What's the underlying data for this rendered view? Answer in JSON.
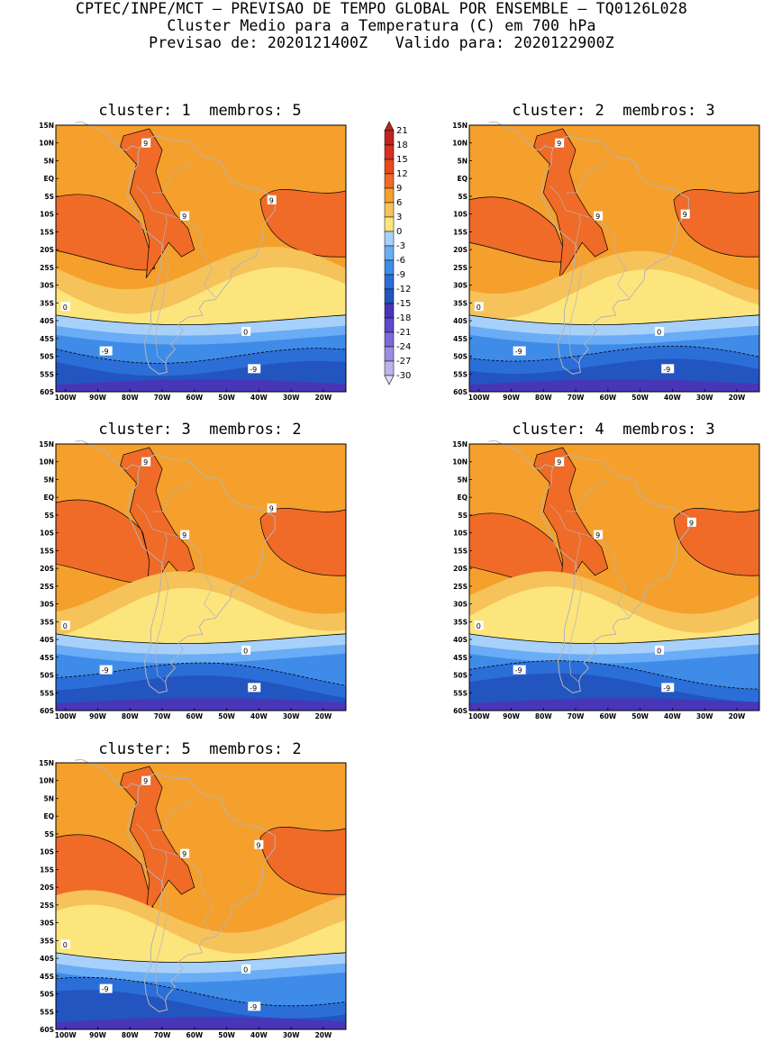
{
  "header": {
    "line1": "CPTEC/INPE/MCT – PREVISAO DE TEMPO GLOBAL POR ENSEMBLE – TQ0126L028",
    "line2": "Cluster Medio para a Temperatura (C) em 700 hPa",
    "line3": "Previsao de: 2020121400Z   Valido para: 2020122900Z"
  },
  "panels": [
    {
      "title": "cluster: 1  membros: 5"
    },
    {
      "title": "cluster: 2  membros: 3"
    },
    {
      "title": "cluster: 3  membros: 2"
    },
    {
      "title": "cluster: 4  membros: 3"
    },
    {
      "title": "cluster: 5  membros: 2"
    }
  ],
  "lat_labels": [
    "15N",
    "10N",
    "5N",
    "EQ",
    "5S",
    "10S",
    "15S",
    "20S",
    "25S",
    "30S",
    "35S",
    "40S",
    "45S",
    "50S",
    "55S",
    "60S"
  ],
  "lon_labels": [
    "100W",
    "90W",
    "80W",
    "70W",
    "60W",
    "50W",
    "40W",
    "30W",
    "20W"
  ],
  "contour_labels": [
    "9",
    "0",
    "-9"
  ],
  "colorbar": {
    "levels": [
      "21",
      "18",
      "15",
      "12",
      "9",
      "6",
      "3",
      "0",
      "-3",
      "-6",
      "-9",
      "-12",
      "-15",
      "-18",
      "-21",
      "-24",
      "-27",
      "-30"
    ],
    "colors": [
      "#c0241c",
      "#d8301c",
      "#e84a1c",
      "#f06a28",
      "#f5a02c",
      "#f6c25a",
      "#fde57e",
      "#a7d1fb",
      "#6aacf5",
      "#3f8ce8",
      "#2b6ed8",
      "#2355c0",
      "#4836b8",
      "#5e48cc",
      "#7a6ad8",
      "#9a8ce2",
      "#bdb2ec",
      "#e4e0f6"
    ]
  },
  "colors": {
    "warm12": "#f06a28",
    "warm9": "#f5a02c",
    "warm6": "#f6c25a",
    "warm3": "#fde57e",
    "cold0": "#a7d1fb",
    "cold3": "#6aacf5",
    "cold6": "#3f8ce8",
    "cold9": "#2b6ed8",
    "cold12": "#2355c0",
    "cold15": "#4836b8",
    "coast": "#b4b4b4"
  }
}
